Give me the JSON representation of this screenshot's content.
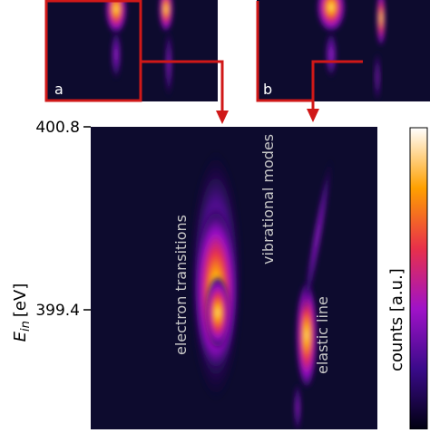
{
  "panels": {
    "a": "a",
    "b": "b"
  },
  "y_axis": {
    "symbol": "E",
    "subscript": "in",
    "unit": "[eV]",
    "ticks": [
      "400.8",
      "399.4"
    ]
  },
  "annotations": {
    "electron": "electron transitions",
    "vibrational": "vibrational modes",
    "elastic": "elastic line"
  },
  "colorbar": {
    "label": "counts [a.u.]"
  }
}
